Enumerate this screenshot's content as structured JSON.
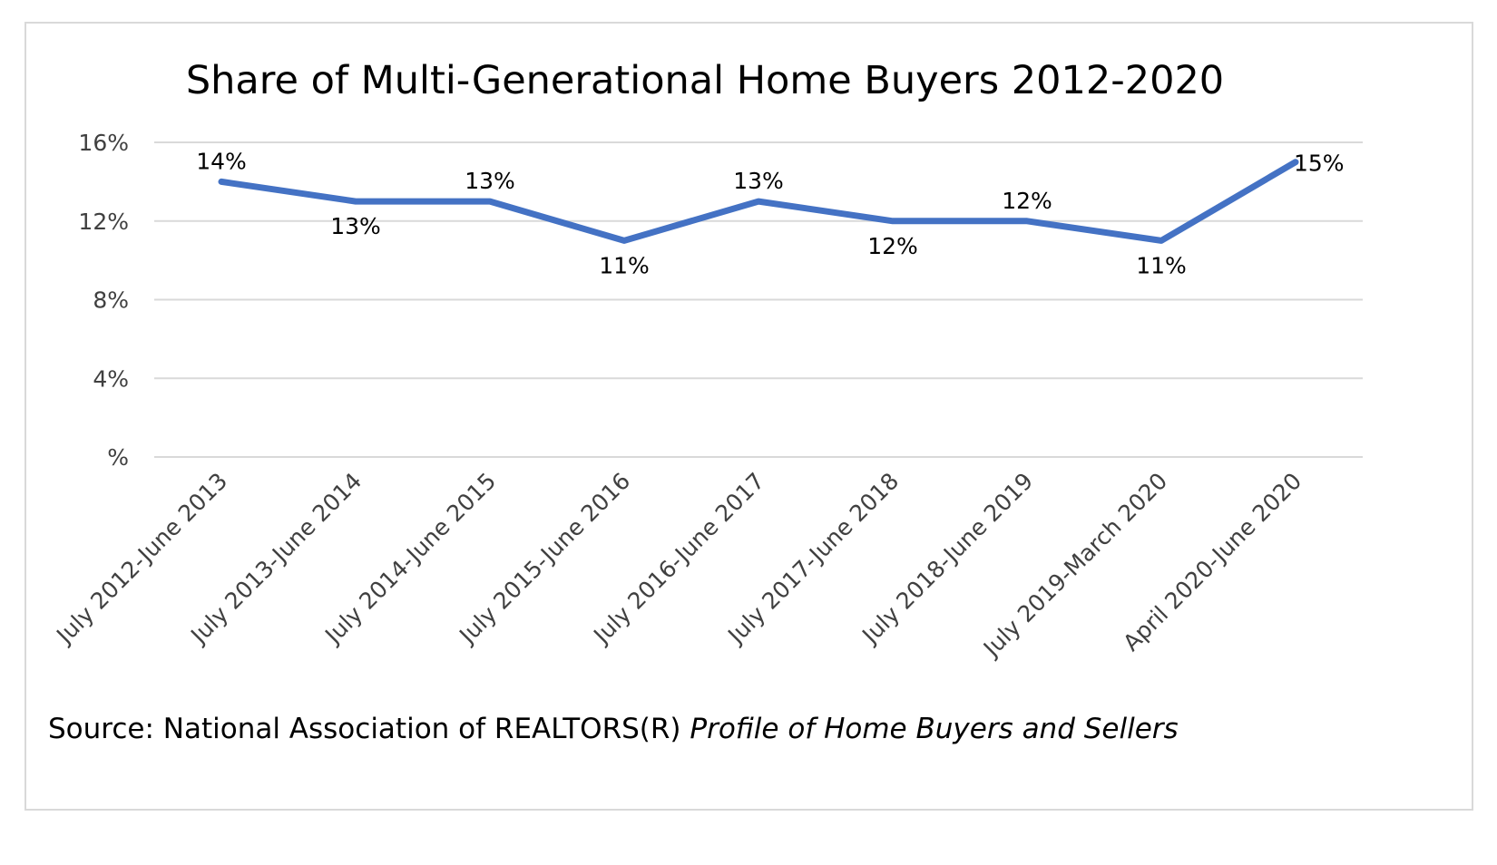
{
  "chart_data": {
    "type": "line",
    "title": "Share of Multi-Generational Home Buyers 2012-2020",
    "categories": [
      "July 2012-June 2013",
      "July 2013-June 2014",
      "July 2014-June 2015",
      "July 2015-June 2016",
      "July 2016-June 2017",
      "July 2017-June 2018",
      "July 2018-June 2019",
      "July 2019-March 2020",
      "April 2020-June 2020"
    ],
    "series": [
      {
        "values": [
          14,
          13,
          13,
          11,
          13,
          12,
          12,
          11,
          15
        ],
        "color": "#4472c4"
      }
    ],
    "data_labels": [
      "14%",
      "13%",
      "13%",
      "11%",
      "13%",
      "12%",
      "12%",
      "11%",
      "15%"
    ],
    "ylim": [
      0,
      16
    ],
    "y_ticks": [
      0,
      4,
      8,
      12,
      16
    ],
    "y_tick_labels": [
      "%",
      "4%",
      "8%",
      "12%",
      "16%"
    ],
    "grid": "horizontal",
    "legend": "none",
    "xlabel": "",
    "ylabel": ""
  },
  "source": {
    "prefix": "Source: National Association of REALTORS(R) ",
    "italic": "Profile of Home Buyers and Sellers"
  }
}
